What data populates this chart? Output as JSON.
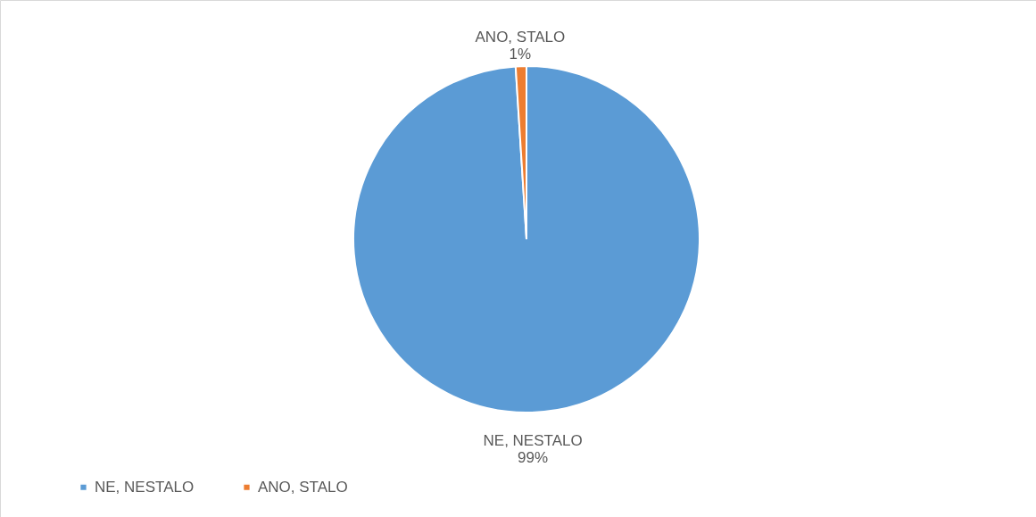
{
  "chart_data": {
    "type": "pie",
    "categories": [
      "NE, NESTALO",
      "ANO, STALO"
    ],
    "values": [
      99,
      1
    ],
    "colors": [
      "#5b9bd5",
      "#ed7d31"
    ],
    "value_labels": [
      "99%",
      "1%"
    ],
    "legend": "bottom left"
  }
}
